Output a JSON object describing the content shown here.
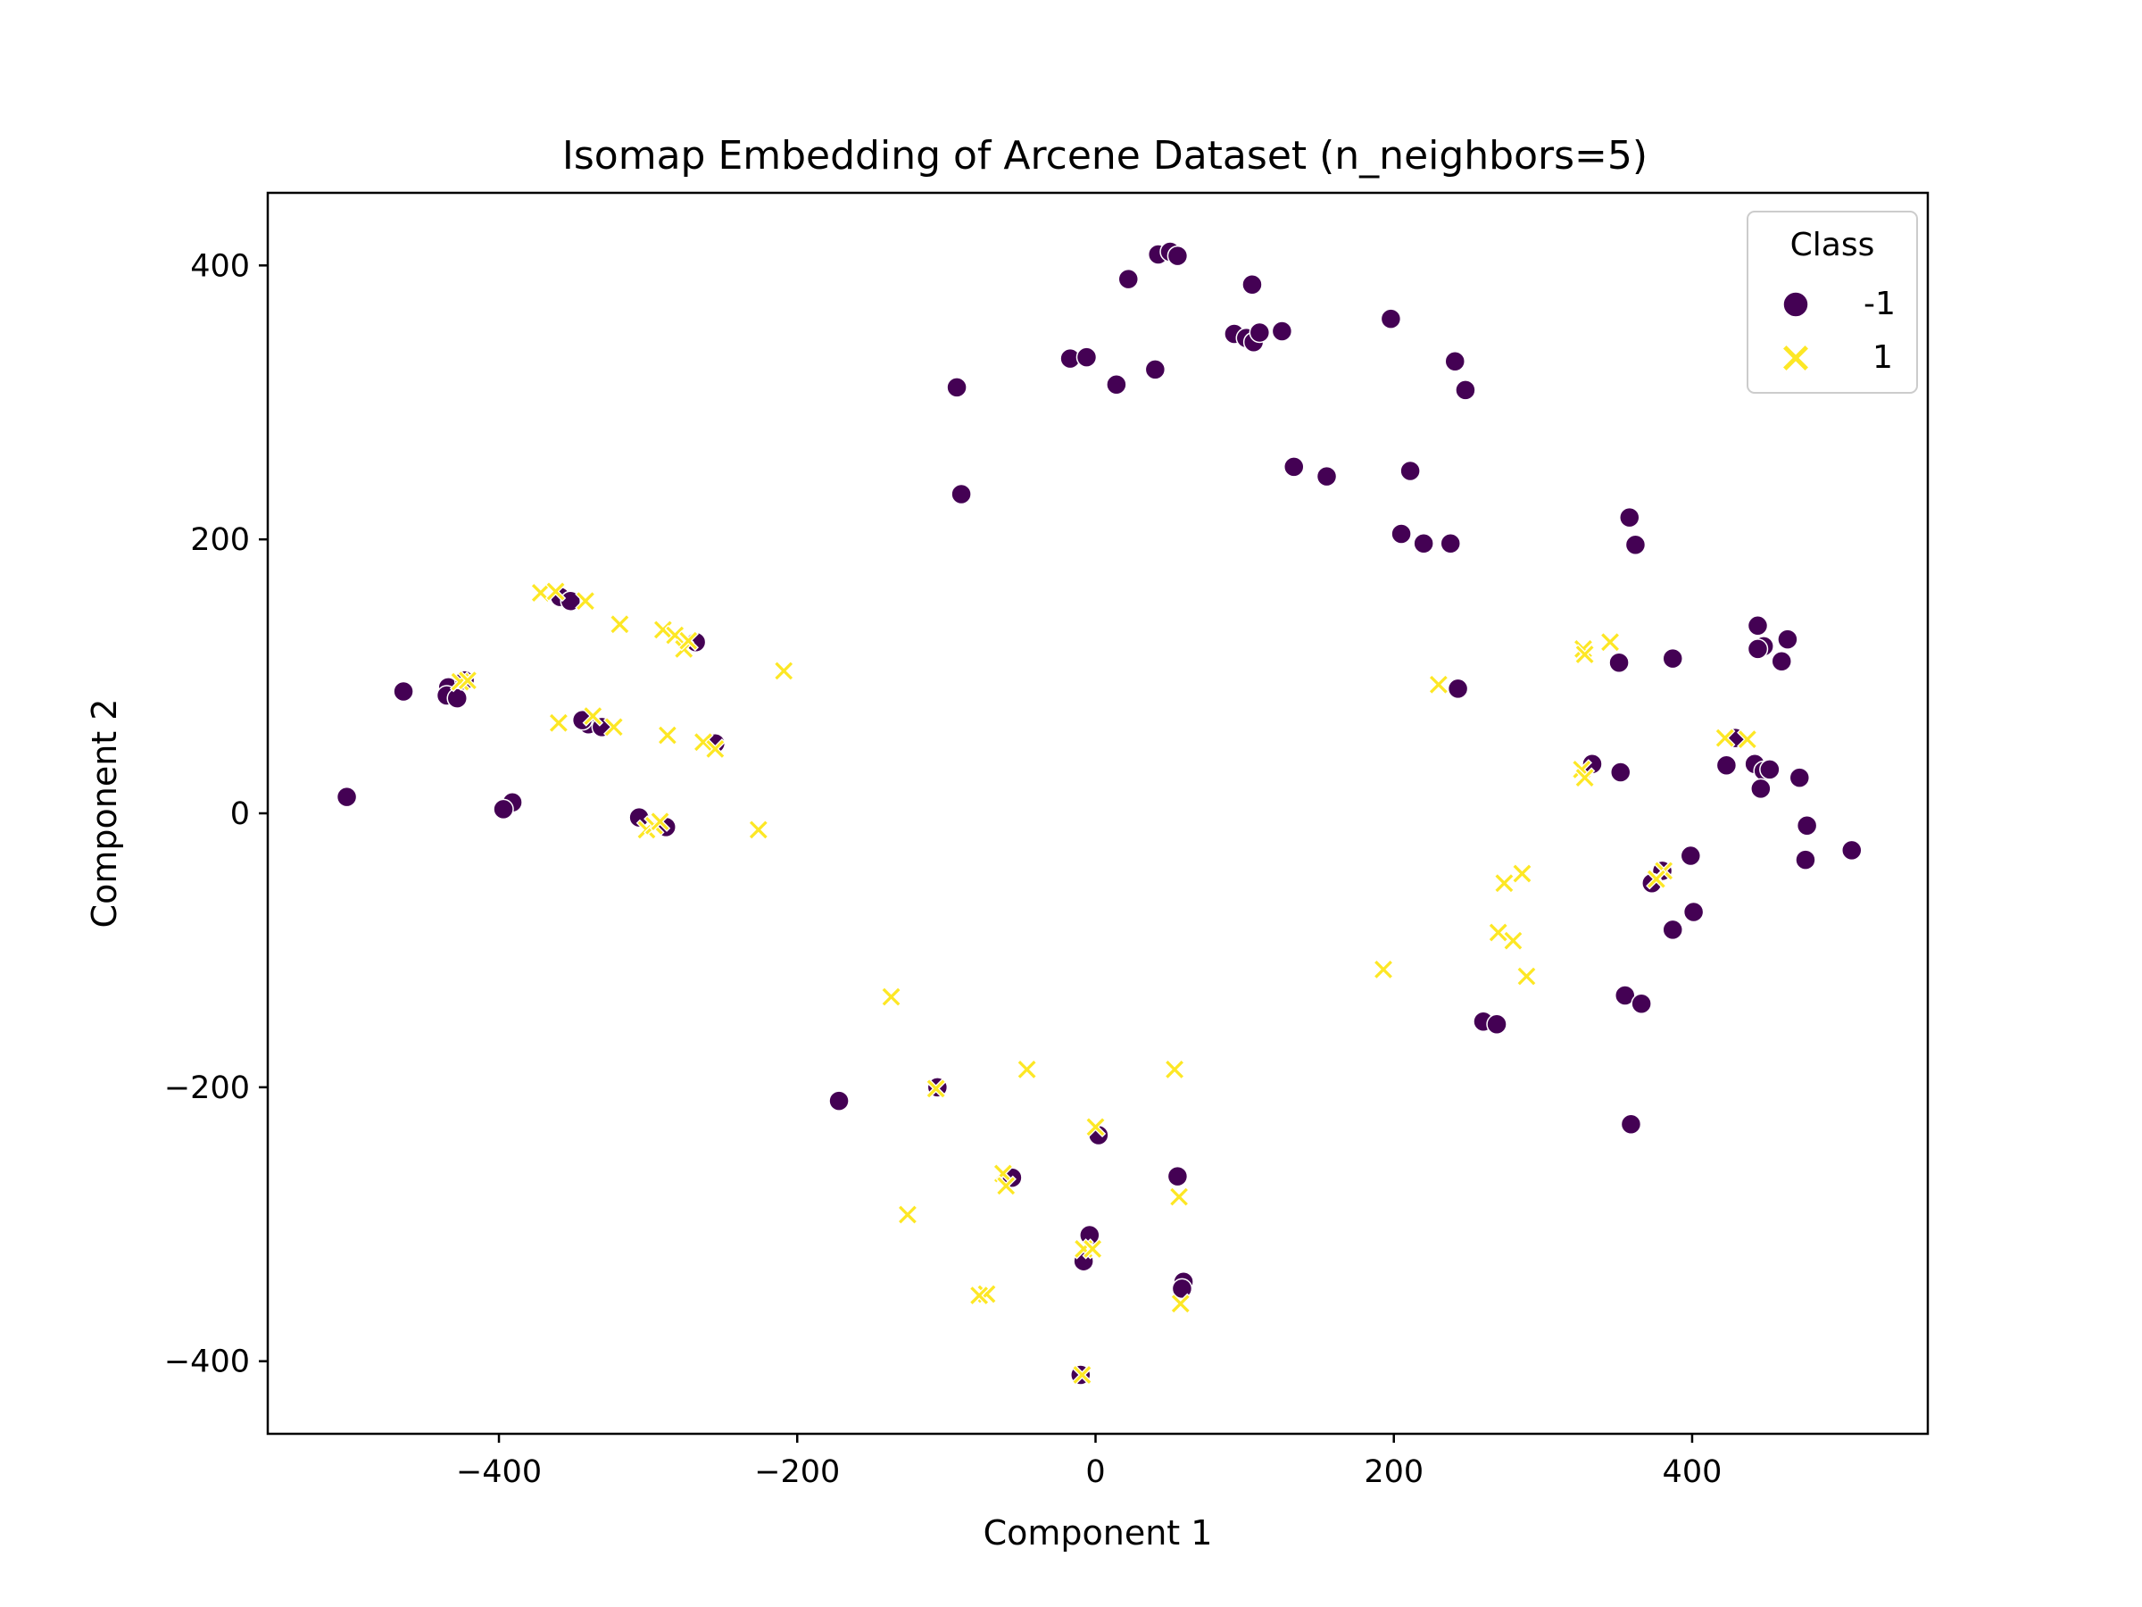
{
  "chart_data": {
    "type": "scatter",
    "title": "Isomap Embedding of Arcene Dataset (n_neighbors=5)",
    "xlabel": "Component 1",
    "ylabel": "Component 2",
    "xlim": [
      -555,
      558
    ],
    "ylim": [
      -453,
      453
    ],
    "xticks": [
      -400,
      -200,
      0,
      200,
      400
    ],
    "yticks": [
      -400,
      -200,
      0,
      200,
      400
    ],
    "xtick_labels": [
      "−400",
      "−200",
      "0",
      "200",
      "400"
    ],
    "ytick_labels": [
      "−400",
      "−200",
      "0",
      "200",
      "400"
    ],
    "grid": false,
    "legend": {
      "title": "Class",
      "position": "top-right",
      "entries": [
        {
          "label": "-1",
          "color": "#440154",
          "marker": "circle"
        },
        {
          "label": "1",
          "color": "#fde725",
          "marker": "x"
        }
      ]
    },
    "series": [
      {
        "name": "-1",
        "color": "#440154",
        "marker": "circle",
        "points": [
          [
            42,
            408
          ],
          [
            50,
            410
          ],
          [
            55,
            407
          ],
          [
            22,
            390
          ],
          [
            105,
            386
          ],
          [
            93,
            350
          ],
          [
            101,
            347
          ],
          [
            106,
            344
          ],
          [
            110,
            351
          ],
          [
            125,
            352
          ],
          [
            198,
            361
          ],
          [
            -17,
            332
          ],
          [
            -6,
            333
          ],
          [
            40,
            324
          ],
          [
            14,
            313
          ],
          [
            -93,
            311
          ],
          [
            241,
            330
          ],
          [
            248,
            309
          ],
          [
            133,
            253
          ],
          [
            155,
            246
          ],
          [
            211,
            250
          ],
          [
            -90,
            233
          ],
          [
            205,
            204
          ],
          [
            220,
            197
          ],
          [
            238,
            197
          ],
          [
            358,
            216
          ],
          [
            362,
            196
          ],
          [
            444,
            137
          ],
          [
            464,
            127
          ],
          [
            448,
            122
          ],
          [
            444,
            120
          ],
          [
            460,
            111
          ],
          [
            351,
            110
          ],
          [
            387,
            113
          ],
          [
            243,
            91
          ],
          [
            -464,
            89
          ],
          [
            -434,
            92
          ],
          [
            -435,
            86
          ],
          [
            -428,
            84
          ],
          [
            -423,
            97
          ],
          [
            -359,
            158
          ],
          [
            -352,
            155
          ],
          [
            -268,
            125
          ],
          [
            -340,
            65
          ],
          [
            -344,
            68
          ],
          [
            -331,
            63
          ],
          [
            -255,
            51
          ],
          [
            -502,
            12
          ],
          [
            -391,
            8
          ],
          [
            -397,
            3
          ],
          [
            -306,
            -3
          ],
          [
            -288,
            -10
          ],
          [
            333,
            36
          ],
          [
            352,
            30
          ],
          [
            423,
            35
          ],
          [
            442,
            36
          ],
          [
            448,
            31
          ],
          [
            452,
            32
          ],
          [
            446,
            18
          ],
          [
            472,
            26
          ],
          [
            477,
            -9
          ],
          [
            476,
            -34
          ],
          [
            507,
            -27
          ],
          [
            429,
            55
          ],
          [
            399,
            -31
          ],
          [
            380,
            -42
          ],
          [
            373,
            -51
          ],
          [
            401,
            -72
          ],
          [
            387,
            -85
          ],
          [
            355,
            -133
          ],
          [
            366,
            -139
          ],
          [
            260,
            -152
          ],
          [
            269,
            -154
          ],
          [
            359,
            -227
          ],
          [
            -106,
            -200
          ],
          [
            -172,
            -210
          ],
          [
            2,
            -235
          ],
          [
            -56,
            -266
          ],
          [
            55,
            -265
          ],
          [
            -4,
            -308
          ],
          [
            -8,
            -327
          ],
          [
            59,
            -342
          ],
          [
            58,
            -347
          ],
          [
            -10,
            -410
          ]
        ]
      },
      {
        "name": "1",
        "color": "#fde725",
        "marker": "x",
        "points": [
          [
            -372,
            161
          ],
          [
            -362,
            162
          ],
          [
            -342,
            155
          ],
          [
            -319,
            138
          ],
          [
            -290,
            134
          ],
          [
            -282,
            130
          ],
          [
            -276,
            120
          ],
          [
            -273,
            126
          ],
          [
            -209,
            104
          ],
          [
            -426,
            96
          ],
          [
            -421,
            97
          ],
          [
            -360,
            66
          ],
          [
            -337,
            71
          ],
          [
            -323,
            63
          ],
          [
            -287,
            57
          ],
          [
            -263,
            52
          ],
          [
            -255,
            47
          ],
          [
            -301,
            -12
          ],
          [
            -296,
            -9
          ],
          [
            -292,
            -6
          ],
          [
            -226,
            -12
          ],
          [
            -137,
            -134
          ],
          [
            -107,
            -201
          ],
          [
            -46,
            -187
          ],
          [
            53,
            -187
          ],
          [
            0,
            -229
          ],
          [
            -62,
            -263
          ],
          [
            -60,
            -272
          ],
          [
            56,
            -280
          ],
          [
            -126,
            -293
          ],
          [
            -8,
            -318
          ],
          [
            -2,
            -318
          ],
          [
            -73,
            -351
          ],
          [
            -78,
            -352
          ],
          [
            57,
            -358
          ],
          [
            -9,
            -410
          ],
          [
            230,
            94
          ],
          [
            327,
            120
          ],
          [
            328,
            116
          ],
          [
            345,
            125
          ],
          [
            326,
            32
          ],
          [
            328,
            26
          ],
          [
            422,
            55
          ],
          [
            437,
            54
          ],
          [
            381,
            -42
          ],
          [
            376,
            -48
          ],
          [
            286,
            -44
          ],
          [
            274,
            -51
          ],
          [
            270,
            -87
          ],
          [
            280,
            -93
          ],
          [
            289,
            -119
          ],
          [
            193,
            -114
          ]
        ]
      }
    ]
  }
}
